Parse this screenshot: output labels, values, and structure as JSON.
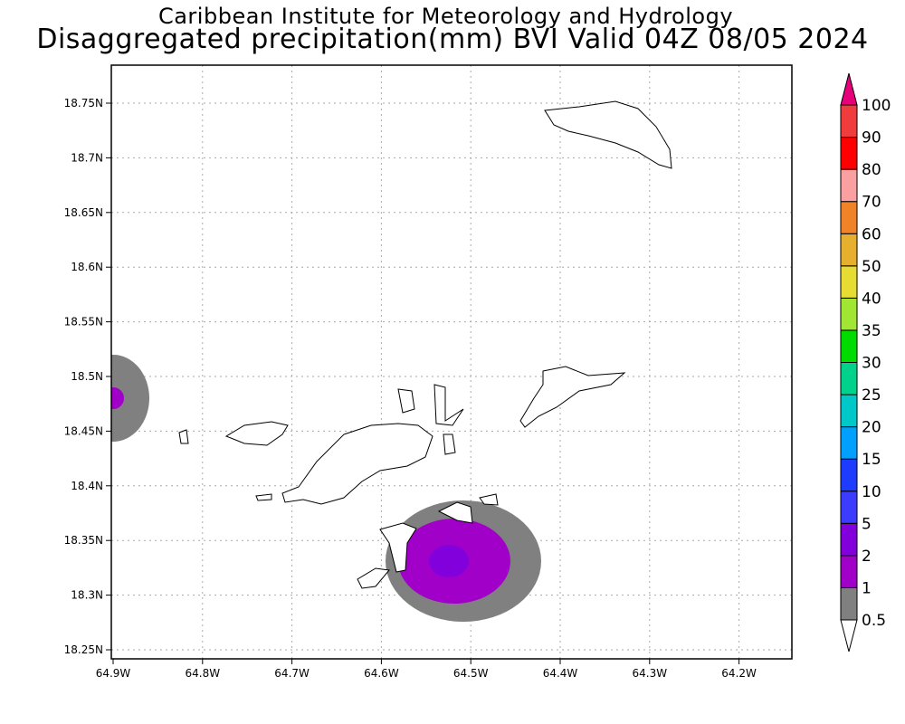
{
  "header": {
    "title": "Caribbean Institute for Meteorology and Hydrology",
    "subtitle": "Disaggregated precipitation(mm) BVI Valid 04Z 08/05 2024"
  },
  "map": {
    "lon_ticks": [
      "64.9W",
      "64.8W",
      "64.7W",
      "64.6W",
      "64.5W",
      "64.4W",
      "64.3W",
      "64.2W"
    ],
    "lat_ticks": [
      "18.75N",
      "18.7N",
      "18.65N",
      "18.6N",
      "18.55N",
      "18.5N",
      "18.45N",
      "18.4N",
      "18.35N",
      "18.3N",
      "18.25N"
    ],
    "lon_range": [
      -64.9,
      -64.15
    ],
    "lat_range": [
      18.24,
      18.79
    ]
  },
  "colorbar": {
    "labels": [
      "0.5",
      "1",
      "2",
      "5",
      "10",
      "15",
      "20",
      "25",
      "30",
      "35",
      "40",
      "50",
      "60",
      "70",
      "80",
      "90",
      "100"
    ],
    "colors": [
      "#808080",
      "#a000c8",
      "#8200dc",
      "#3c3cff",
      "#1e3cff",
      "#00a0ff",
      "#00c8c8",
      "#00d28c",
      "#00dc00",
      "#a0e632",
      "#e6dc32",
      "#e6af2d",
      "#f08228",
      "#faa0a0",
      "#ff0000",
      "#f03c3c"
    ],
    "low_color": "#ffffff",
    "high_color": "#e6007a"
  }
}
